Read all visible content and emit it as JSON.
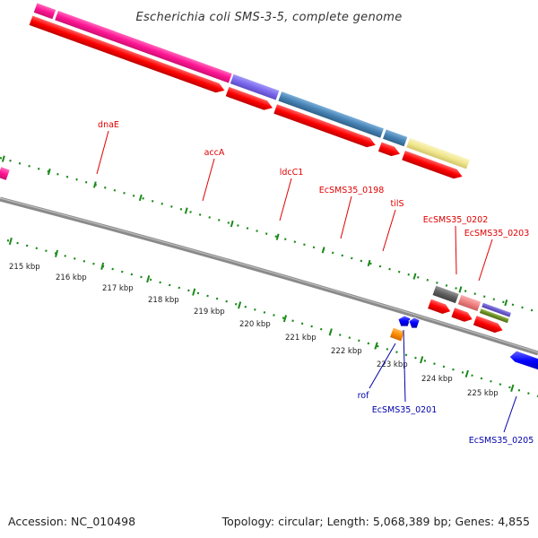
{
  "title": "Escherichia coli SMS-3-5, complete genome",
  "footer": {
    "accession": "Accession: NC_010498",
    "stats": "Topology: circular; Length: 5,068,389 bp; Genes: 4,855"
  },
  "colors": {
    "label_forward": "#e00000",
    "label_reverse": "#0000aa",
    "cds_arrow": "#ff0000",
    "backbone": "#808080",
    "tick": "#1a8a1a"
  },
  "scale_labels": [
    "215 kbp",
    "216 kbp",
    "217 kbp",
    "218 kbp",
    "219 kbp",
    "220 kbp",
    "221 kbp",
    "222 kbp",
    "223 kbp",
    "224 kbp",
    "225 kbp"
  ],
  "forward_genes": [
    {
      "label": "dnaE",
      "color": "#ff1493"
    },
    {
      "label": "accA",
      "color": "#7b68ee"
    },
    {
      "label": "ldcC1",
      "color": "#4682b4"
    },
    {
      "label": "EcSMS35_0198",
      "color": "#4682b4"
    },
    {
      "label": "tilS",
      "color": "#f0e68c"
    },
    {
      "label": "EcSMS35_0202",
      "color": "#606060"
    },
    {
      "label": "EcSMS35_0203",
      "color": "#f08080"
    },
    {
      "label": "",
      "color": "#6a5acd"
    },
    {
      "label": "",
      "color": "#6b8e23"
    }
  ],
  "reverse_genes": [
    {
      "label": "rof",
      "color": "#ff8c00"
    },
    {
      "label": "EcSMS35_0201",
      "color": "#0000ff"
    },
    {
      "label": "EcSMS35_0205",
      "color": "#0000ff"
    }
  ]
}
